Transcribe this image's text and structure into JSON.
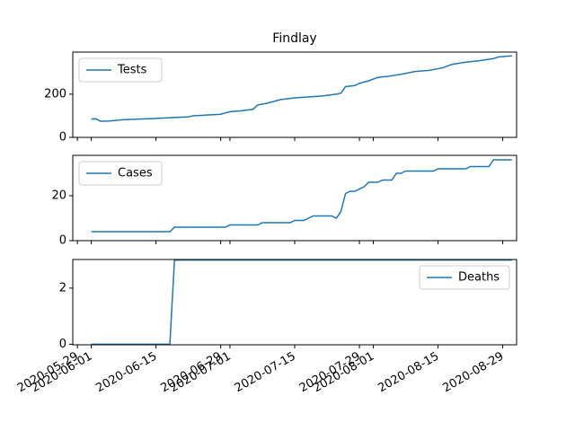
{
  "chart_data": [
    {
      "type": "line",
      "title": "Findlay",
      "x": [
        "2020-06-01",
        "2020-06-02",
        "2020-06-03",
        "2020-06-05",
        "2020-06-08",
        "2020-06-14",
        "2020-06-20",
        "2020-06-22",
        "2020-06-23",
        "2020-06-29",
        "2020-07-01",
        "2020-07-03",
        "2020-07-06",
        "2020-07-07",
        "2020-07-09",
        "2020-07-12",
        "2020-07-15",
        "2020-07-21",
        "2020-07-24",
        "2020-07-25",
        "2020-07-26",
        "2020-07-28",
        "2020-07-29",
        "2020-07-31",
        "2020-08-02",
        "2020-08-04",
        "2020-08-07",
        "2020-08-10",
        "2020-08-13",
        "2020-08-16",
        "2020-08-18",
        "2020-08-21",
        "2020-08-24",
        "2020-08-27",
        "2020-08-28",
        "2020-08-31"
      ],
      "series": [
        {
          "name": "Tests",
          "color": "#1f77b4",
          "values": [
            85,
            86,
            75,
            76,
            82,
            87,
            93,
            95,
            100,
            107,
            119,
            122,
            130,
            150,
            158,
            175,
            183,
            192,
            200,
            205,
            235,
            240,
            250,
            262,
            278,
            282,
            292,
            305,
            310,
            322,
            338,
            348,
            355,
            365,
            372,
            378
          ]
        }
      ],
      "xlim": [
        "2020-05-28",
        "2020-09-01"
      ],
      "ylim": [
        0,
        395
      ],
      "yticks": [
        0,
        200
      ],
      "legend": "upper left"
    },
    {
      "type": "line",
      "x": [
        "2020-06-01",
        "2020-06-18",
        "2020-06-19",
        "2020-06-30",
        "2020-07-01",
        "2020-07-07",
        "2020-07-08",
        "2020-07-14",
        "2020-07-15",
        "2020-07-17",
        "2020-07-18",
        "2020-07-19",
        "2020-07-23",
        "2020-07-24",
        "2020-07-25",
        "2020-07-26",
        "2020-07-27",
        "2020-07-28",
        "2020-07-30",
        "2020-07-31",
        "2020-08-02",
        "2020-08-03",
        "2020-08-05",
        "2020-08-06",
        "2020-08-07",
        "2020-08-08",
        "2020-08-14",
        "2020-08-15",
        "2020-08-21",
        "2020-08-22",
        "2020-08-26",
        "2020-08-27",
        "2020-08-31"
      ],
      "series": [
        {
          "name": "Cases",
          "color": "#1f77b4",
          "values": [
            4,
            4,
            6,
            6,
            7,
            7,
            8,
            8,
            9,
            9,
            10,
            11,
            11,
            10,
            13,
            21,
            22,
            22,
            24,
            26,
            26,
            27,
            27,
            30,
            30,
            31,
            31,
            32,
            32,
            33,
            33,
            36,
            36
          ]
        }
      ],
      "xlim": [
        "2020-05-28",
        "2020-09-01"
      ],
      "ylim": [
        0,
        38
      ],
      "yticks": [
        0,
        20
      ],
      "legend": "upper left"
    },
    {
      "type": "line",
      "x": [
        "2020-06-01",
        "2020-06-18",
        "2020-06-19",
        "2020-08-31"
      ],
      "series": [
        {
          "name": "Deaths",
          "color": "#1f77b4",
          "values": [
            0,
            0,
            3,
            3
          ]
        }
      ],
      "xlim": [
        "2020-05-28",
        "2020-09-01"
      ],
      "ylim": [
        -0.02,
        3.02
      ],
      "yticks": [
        0,
        2
      ],
      "xticks": [
        "2020-05-29",
        "2020-06-01",
        "2020-06-15",
        "2020-06-29",
        "2020-07-01",
        "2020-07-15",
        "2020-07-29",
        "2020-08-01",
        "2020-08-15",
        "2020-08-29"
      ],
      "legend": "upper right"
    }
  ]
}
